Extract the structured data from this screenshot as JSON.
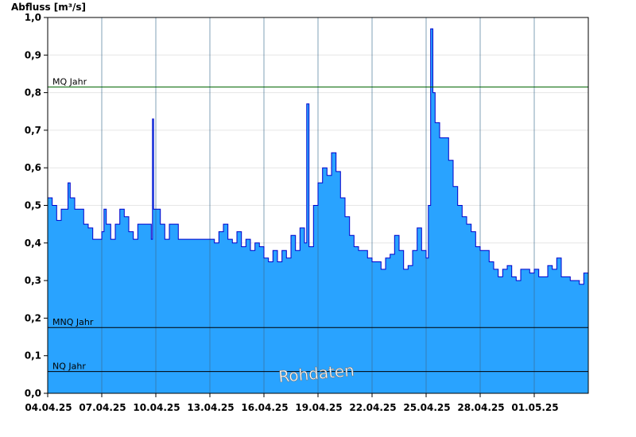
{
  "chart_data": {
    "type": "area",
    "ylabel": "Abfluss [m³/s]",
    "ylim": [
      0,
      1.0
    ],
    "yticks": [
      0.0,
      0.1,
      0.2,
      0.3,
      0.4,
      0.5,
      0.6,
      0.7,
      0.8,
      0.9,
      1.0
    ],
    "ytick_labels": [
      "0,0",
      "0,1",
      "0,2",
      "0,3",
      "0,4",
      "0,5",
      "0,6",
      "0,7",
      "0,8",
      "0,9",
      "1,0"
    ],
    "xlim": [
      "2025-04-04",
      "2025-05-04"
    ],
    "xticks": [
      "2025-04-04",
      "2025-04-07",
      "2025-04-10",
      "2025-04-13",
      "2025-04-16",
      "2025-04-19",
      "2025-04-22",
      "2025-04-25",
      "2025-04-28",
      "2025-05-01"
    ],
    "xtick_labels": [
      "04.04.25",
      "07.04.25",
      "10.04.25",
      "13.04.25",
      "16.04.25",
      "19.04.25",
      "22.04.25",
      "25.04.25",
      "28.04.25",
      "01.05.25"
    ],
    "grid": true,
    "colors": {
      "area": "#29a3ff",
      "line": "#0000cc",
      "mq_line": "#006400",
      "ref_line": "#000000",
      "grid": "#e6e6e6",
      "day_line": "#3a6a8f"
    },
    "reference_lines": [
      {
        "label": "MQ Jahr",
        "value": 0.815
      },
      {
        "label": "MNQ Jahr",
        "value": 0.175
      },
      {
        "label": "NQ Jahr",
        "value": 0.058
      }
    ],
    "watermark": "Rohdaten",
    "series": [
      {
        "x": [
          "2025-04-04T00:00",
          "2025-04-04T06:00",
          "2025-04-04T12:00",
          "2025-04-04T18:00",
          "2025-04-05T00:00",
          "2025-04-05T03:00",
          "2025-04-05T06:00",
          "2025-04-05T12:00",
          "2025-04-05T18:00",
          "2025-04-06T00:00",
          "2025-04-06T06:00",
          "2025-04-06T12:00",
          "2025-04-06T18:00",
          "2025-04-07T00:00",
          "2025-04-07T03:00",
          "2025-04-07T06:00",
          "2025-04-07T12:00",
          "2025-04-07T18:00",
          "2025-04-08T00:00",
          "2025-04-08T06:00",
          "2025-04-08T12:00",
          "2025-04-08T18:00",
          "2025-04-09T00:00",
          "2025-04-09T12:00",
          "2025-04-09T18:00",
          "2025-04-09T19:30",
          "2025-04-09T21:00",
          "2025-04-10T00:00",
          "2025-04-10T06:00",
          "2025-04-10T12:00",
          "2025-04-10T18:00",
          "2025-04-11T00:00",
          "2025-04-11T06:00",
          "2025-04-11T12:00",
          "2025-04-11T18:00",
          "2025-04-12T00:00",
          "2025-04-12T12:00",
          "2025-04-13T00:00",
          "2025-04-13T06:00",
          "2025-04-13T12:00",
          "2025-04-13T18:00",
          "2025-04-14T00:00",
          "2025-04-14T06:00",
          "2025-04-14T12:00",
          "2025-04-14T18:00",
          "2025-04-15T00:00",
          "2025-04-15T06:00",
          "2025-04-15T12:00",
          "2025-04-15T18:00",
          "2025-04-16T00:00",
          "2025-04-16T06:00",
          "2025-04-16T12:00",
          "2025-04-16T18:00",
          "2025-04-17T00:00",
          "2025-04-17T06:00",
          "2025-04-17T12:00",
          "2025-04-17T18:00",
          "2025-04-18T00:00",
          "2025-04-18T06:00",
          "2025-04-18T09:00",
          "2025-04-18T12:00",
          "2025-04-18T18:00",
          "2025-04-19T00:00",
          "2025-04-19T06:00",
          "2025-04-19T12:00",
          "2025-04-19T18:00",
          "2025-04-20T00:00",
          "2025-04-20T06:00",
          "2025-04-20T12:00",
          "2025-04-20T18:00",
          "2025-04-21T00:00",
          "2025-04-21T06:00",
          "2025-04-21T12:00",
          "2025-04-21T18:00",
          "2025-04-22T00:00",
          "2025-04-22T06:00",
          "2025-04-22T12:00",
          "2025-04-22T18:00",
          "2025-04-23T00:00",
          "2025-04-23T06:00",
          "2025-04-23T12:00",
          "2025-04-23T18:00",
          "2025-04-24T00:00",
          "2025-04-24T06:00",
          "2025-04-24T12:00",
          "2025-04-24T18:00",
          "2025-04-25T00:00",
          "2025-04-25T03:00",
          "2025-04-25T06:00",
          "2025-04-25T09:00",
          "2025-04-25T12:00",
          "2025-04-25T18:00",
          "2025-04-26T00:00",
          "2025-04-26T06:00",
          "2025-04-26T12:00",
          "2025-04-26T18:00",
          "2025-04-27T00:00",
          "2025-04-27T06:00",
          "2025-04-27T12:00",
          "2025-04-27T18:00",
          "2025-04-28T00:00",
          "2025-04-28T06:00",
          "2025-04-28T12:00",
          "2025-04-28T18:00",
          "2025-04-29T00:00",
          "2025-04-29T06:00",
          "2025-04-29T12:00",
          "2025-04-29T18:00",
          "2025-04-30T00:00",
          "2025-04-30T06:00",
          "2025-04-30T12:00",
          "2025-04-30T18:00",
          "2025-05-01T00:00",
          "2025-05-01T06:00",
          "2025-05-01T12:00",
          "2025-05-01T18:00",
          "2025-05-02T00:00",
          "2025-05-02T06:00",
          "2025-05-02T12:00",
          "2025-05-02T18:00",
          "2025-05-03T00:00",
          "2025-05-03T06:00",
          "2025-05-03T12:00",
          "2025-05-03T18:00",
          "2025-05-04T00:00"
        ],
        "values": [
          0.52,
          0.5,
          0.46,
          0.49,
          0.49,
          0.56,
          0.52,
          0.49,
          0.49,
          0.45,
          0.44,
          0.41,
          0.41,
          0.43,
          0.49,
          0.45,
          0.41,
          0.45,
          0.49,
          0.47,
          0.43,
          0.41,
          0.45,
          0.45,
          0.41,
          0.73,
          0.49,
          0.49,
          0.45,
          0.41,
          0.45,
          0.45,
          0.41,
          0.41,
          0.41,
          0.41,
          0.41,
          0.41,
          0.4,
          0.43,
          0.45,
          0.41,
          0.4,
          0.43,
          0.39,
          0.41,
          0.38,
          0.4,
          0.39,
          0.36,
          0.35,
          0.38,
          0.35,
          0.38,
          0.36,
          0.42,
          0.38,
          0.44,
          0.4,
          0.77,
          0.39,
          0.5,
          0.56,
          0.6,
          0.58,
          0.64,
          0.59,
          0.52,
          0.47,
          0.42,
          0.39,
          0.38,
          0.38,
          0.36,
          0.35,
          0.35,
          0.33,
          0.36,
          0.37,
          0.42,
          0.38,
          0.33,
          0.34,
          0.38,
          0.44,
          0.38,
          0.36,
          0.5,
          0.97,
          0.8,
          0.72,
          0.68,
          0.68,
          0.62,
          0.55,
          0.5,
          0.47,
          0.45,
          0.43,
          0.39,
          0.38,
          0.38,
          0.35,
          0.33,
          0.31,
          0.33,
          0.34,
          0.31,
          0.3,
          0.33,
          0.33,
          0.32,
          0.33,
          0.31,
          0.31,
          0.34,
          0.33,
          0.36,
          0.31,
          0.31,
          0.3,
          0.3,
          0.29,
          0.32,
          0.35
        ]
      }
    ]
  }
}
